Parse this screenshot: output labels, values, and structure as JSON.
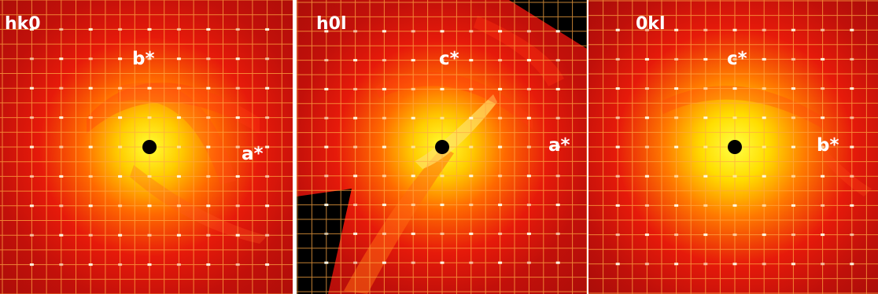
{
  "panels": [
    {
      "id": "hk0",
      "title": "hk0",
      "axis_vertical": "b*",
      "axis_horizontal": "a*"
    },
    {
      "id": "h0l",
      "title": "h0l",
      "axis_vertical": "c*",
      "axis_horizontal": "a*"
    },
    {
      "id": "0kl",
      "title": "0kl",
      "axis_vertical": "c*",
      "axis_horizontal": "b*"
    }
  ],
  "colors": {
    "center": "#ffff33",
    "mid": "#ff6a00",
    "outer": "#c2100a",
    "edge": "#9c0b08",
    "grid": "#ffaa44",
    "grid_black_region": "#ffff66",
    "beam_stop": "#000000",
    "label": "#ffffff"
  }
}
